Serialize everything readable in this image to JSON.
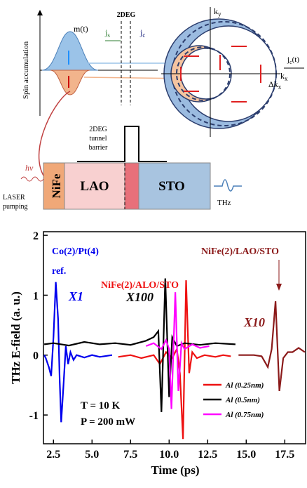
{
  "diagram": {
    "m_label": "m(t)",
    "spin_axis": "Spin accumulation",
    "twodeg": "2DEG",
    "js": {
      "main": "j",
      "sub": "s"
    },
    "jc": {
      "main": "j",
      "sub": "c"
    },
    "ky": {
      "main": "k",
      "sub": "y"
    },
    "kx": {
      "main": "k",
      "sub": "x"
    },
    "dkx": {
      "main": "Δk",
      "sub": "x"
    },
    "jct": {
      "main": "j",
      "sub": "c",
      "tail": "(t)"
    },
    "barrier": [
      "2DEG",
      "tunnel",
      "barrier"
    ],
    "hv": "hν",
    "laser": [
      "LASER",
      "pumping"
    ],
    "layers": [
      "NiFe",
      "LAO",
      "STO"
    ],
    "thz": "THz"
  },
  "chart_data": {
    "type": "line",
    "xlabel": "Time (ps)",
    "ylabel": "THz E-field (a. u.)",
    "xlim": [
      1.85,
      18.85
    ],
    "ylim": [
      -1.48,
      2.06
    ],
    "xticks": [
      2.5,
      {
        "value": 5,
        "label": "5.0"
      },
      7.5,
      {
        "value": 10,
        "label": "10.0"
      },
      12.5,
      {
        "value": 15,
        "label": "15.0"
      },
      17.5
    ],
    "yticks": [
      -1,
      0,
      1,
      2
    ],
    "legend": "lower right",
    "series": [
      {
        "color": "#0000ee",
        "x": [
          1.9,
          2.0,
          2.2,
          2.35,
          2.5,
          2.65,
          2.8,
          2.9,
          3.0,
          3.15,
          3.3,
          3.45,
          3.6,
          3.8,
          4.0,
          4.5,
          5.0,
          5.5,
          6.3
        ],
        "values": [
          0,
          -0.05,
          -0.2,
          -0.35,
          0.3,
          1.22,
          0.6,
          -0.4,
          -1.12,
          -0.5,
          0.15,
          -0.15,
          0.05,
          -0.08,
          0,
          -0.04,
          0,
          -0.03,
          0
        ]
      },
      {
        "name": "Al (0.25nm)",
        "color": "#ee1111",
        "x": [
          6.7,
          7.5,
          8.2,
          9.0,
          9.4,
          9.8,
          10.2,
          10.5,
          10.7,
          10.9,
          11.1,
          11.3,
          11.5,
          11.8,
          12.3,
          13.0,
          13.5,
          14.0
        ],
        "values": [
          -0.03,
          0,
          -0.05,
          0,
          -0.15,
          0.05,
          -0.05,
          0.1,
          -0.3,
          -1.4,
          1.25,
          -0.3,
          0.05,
          -0.05,
          0,
          -0.03,
          0,
          -0.02
        ]
      },
      {
        "name": "Al (0.5nm)",
        "color": "#000000",
        "x": [
          1.9,
          2.5,
          3.5,
          4.5,
          5.5,
          6.5,
          7.5,
          8.5,
          9.0,
          9.3,
          9.5,
          9.75,
          10.0,
          10.2,
          10.5,
          11.0,
          12.0,
          13.0,
          14.3
        ],
        "values": [
          0.18,
          0.2,
          0.16,
          0.22,
          0.18,
          0.2,
          0.17,
          0.24,
          0.3,
          0.4,
          -0.95,
          1.28,
          -0.7,
          0.3,
          0.15,
          0.2,
          0.17,
          0.2,
          0.18
        ]
      },
      {
        "name": "Al (0.75nm)",
        "color": "#ff00ff",
        "x": [
          8.5,
          9.0,
          9.5,
          9.8,
          10.0,
          10.15,
          10.4,
          10.6,
          10.8,
          11.0,
          11.5,
          12.0,
          12.6
        ],
        "values": [
          0.15,
          0.2,
          0.1,
          0.25,
          0.1,
          -0.9,
          1.05,
          -0.6,
          0.2,
          0.1,
          0.18,
          0.12,
          0.15
        ]
      },
      {
        "color": "#8b1a1a",
        "x": [
          14.5,
          15.5,
          16.0,
          16.4,
          16.65,
          16.9,
          17.15,
          17.4,
          17.7,
          18.0,
          18.4,
          18.8
        ],
        "values": [
          0,
          0,
          -0.02,
          -0.2,
          0.1,
          0.9,
          -0.6,
          -0.05,
          0.05,
          0.05,
          0.12,
          0.05
        ]
      }
    ],
    "annotations": [
      {
        "text": "Co(2)/Pt(4)",
        "color": "#0000ee"
      },
      {
        "text": "ref.",
        "color": "#0000ee"
      },
      {
        "text": "X1",
        "color": "#0000ee"
      },
      {
        "text": "NiFe(2)/ALO/STO",
        "color": "#ee1111"
      },
      {
        "text": "X100",
        "color": "#000000"
      },
      {
        "text": "NiFe(2)/LAO/STO",
        "color": "#8b1a1a"
      },
      {
        "text": "X10",
        "color": "#8b1a1a"
      },
      {
        "text": "T = 10 K",
        "color": "#000000"
      },
      {
        "text": "P = 200 mW",
        "color": "#000000"
      }
    ]
  }
}
